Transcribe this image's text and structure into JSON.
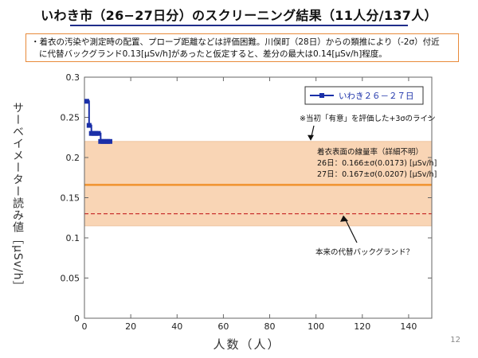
{
  "slide": {
    "title": "いわき市（26−27日分）のスクリーニング結果（11人分/137人）",
    "note_lines": [
      "・着衣の汚染や測定時の配置、プローブ距離などは評価困難。川俣町（28日）からの類推により（-2σ）付近",
      "に代替バックグランド0.13[μSv/h]があったと仮定すると、差分の最大は0.14[μSv/h]程度。"
    ],
    "page_number": "12"
  },
  "colors": {
    "series": "#1a2fa8",
    "band_fill": "#f9d5b5",
    "band_edge": "#eec4a0",
    "mean_line": "#f0922e",
    "background_line": "#c42020",
    "legend_border": "#333333"
  },
  "chart_data": {
    "type": "line",
    "title": "",
    "xlabel": "人数（人）",
    "ylabel": "サーベイメーター読み値［μSv/h］",
    "xlim": [
      0,
      150
    ],
    "ylim": [
      0,
      0.3
    ],
    "x_ticks": [
      0,
      20,
      40,
      60,
      80,
      100,
      120,
      140
    ],
    "y_ticks": [
      0,
      0.05,
      0.1,
      0.15,
      0.2,
      0.25,
      0.3
    ],
    "y_tick_labels": [
      "0",
      "0.05",
      "0.1",
      "0.15",
      "0.2",
      "0.25",
      "0.3"
    ],
    "grid": false,
    "legend_position": "top-right",
    "series": [
      {
        "name": "いわき２６－２７日",
        "x": [
          1,
          2,
          3,
          4,
          5,
          6,
          7,
          8,
          9,
          10,
          11
        ],
        "values": [
          0.27,
          0.24,
          0.23,
          0.23,
          0.23,
          0.23,
          0.22,
          0.22,
          0.22,
          0.22,
          0.22
        ],
        "marker": "square"
      }
    ],
    "band": {
      "lower": 0.115,
      "upper": 0.22,
      "label": "※当初「有意」を評価した+3σのライン"
    },
    "mean_line": {
      "value": 0.166,
      "label_lines": [
        "着衣表面の線量率（詳細不明）",
        "26日：0.166±σ(0.0173) [μSv/h]",
        "27日：0.167±σ(0.0207) [μSv/h]"
      ]
    },
    "background_line": {
      "value": 0.13,
      "label": "本来の代替バックグランド？"
    }
  }
}
